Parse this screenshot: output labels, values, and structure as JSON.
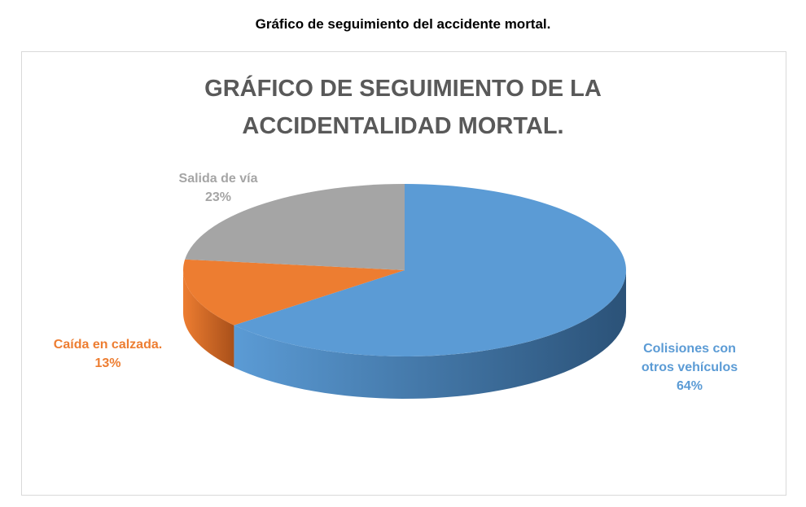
{
  "caption": "Gráfico de seguimiento del accidente mortal.",
  "chart_data": {
    "type": "pie",
    "title_lines": [
      "GRÁFICO DE SEGUIMIENTO DE LA",
      "ACCIDENTALIDAD MORTAL."
    ],
    "start_angle_deg": 0,
    "direction": "clockwise",
    "three_d": true,
    "slices": [
      {
        "label_lines": [
          "Colisiones con",
          "otros vehículos"
        ],
        "value": 64,
        "value_label": "64%",
        "color": "#5b9bd5",
        "side_color": "#2b5278"
      },
      {
        "label_lines": [
          "Caída en calzada."
        ],
        "value": 13,
        "value_label": "13%",
        "color": "#ed7d31",
        "side_color": "#a9501a"
      },
      {
        "label_lines": [
          "Salida de vía"
        ],
        "value": 23,
        "value_label": "23%",
        "color": "#a5a5a5",
        "side_color": "#6f6f6f"
      }
    ]
  }
}
